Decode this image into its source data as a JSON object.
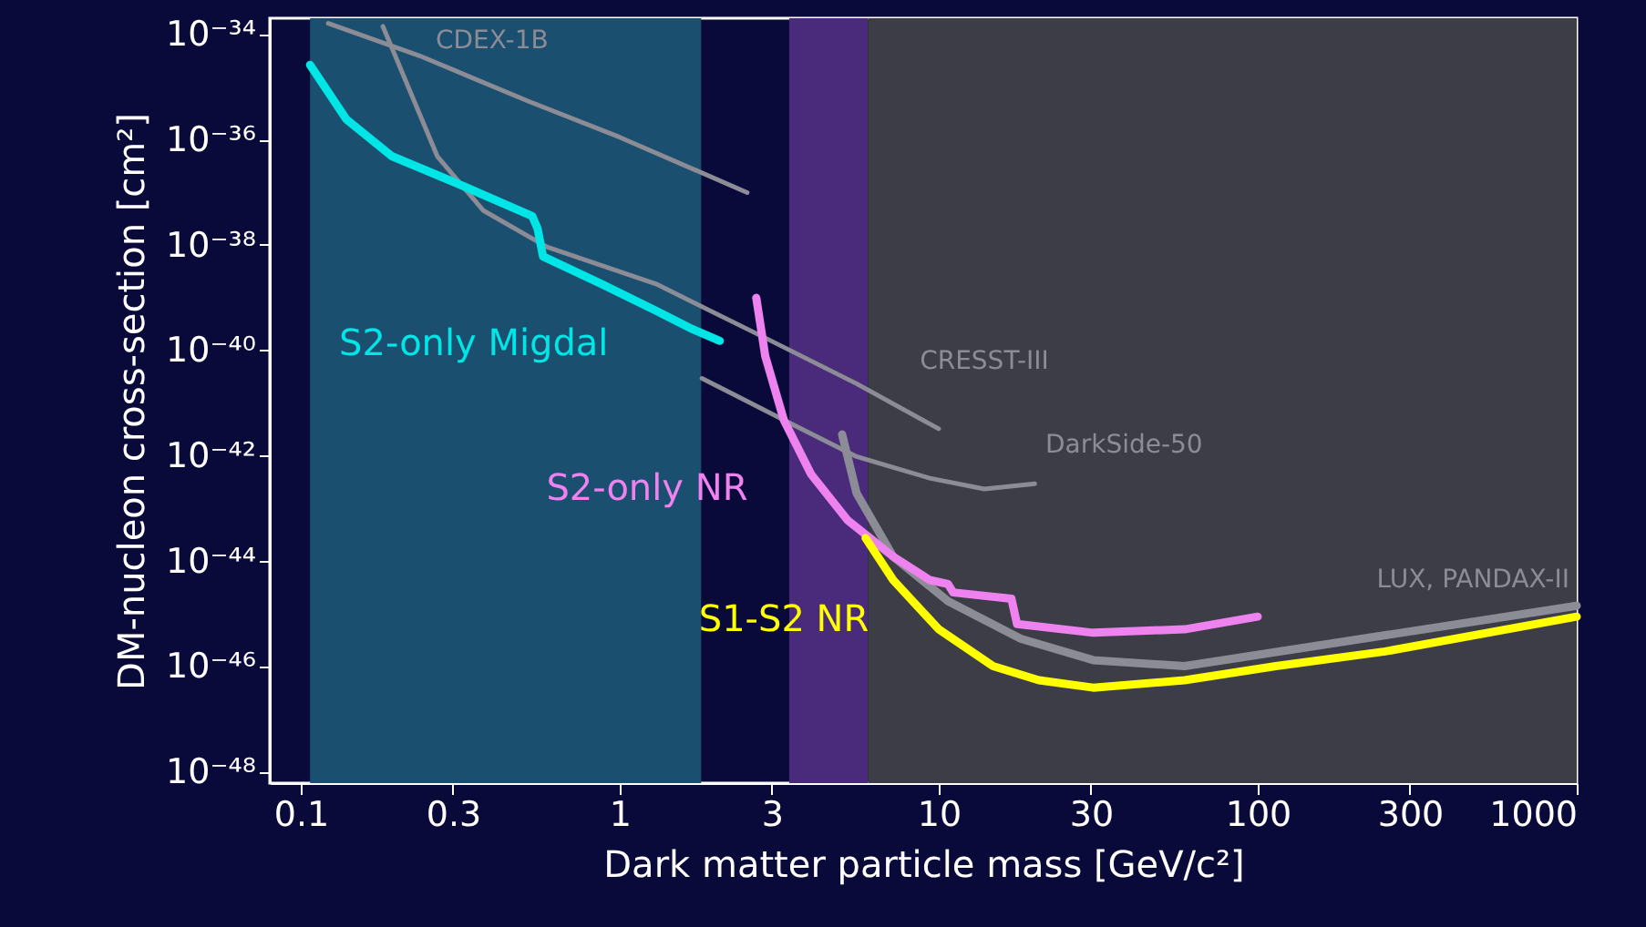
{
  "chart_data": {
    "type": "line",
    "xlabel": "Dark matter particle mass [GeV/c²]",
    "ylabel": "DM-nucleon cross-section [cm²]",
    "log": "xy",
    "grid": false,
    "xlim": [
      0.08,
      1000
    ],
    "xticks": [
      0.1,
      0.3,
      1,
      3,
      10,
      30,
      100,
      300,
      1000
    ],
    "ylim": [
      6e-49,
      2e-34
    ],
    "yticks": [
      {
        "value": 1e-34,
        "label": "10⁻³⁴"
      },
      {
        "value": 1e-36,
        "label": "10⁻³⁶"
      },
      {
        "value": 1e-38,
        "label": "10⁻³⁸"
      },
      {
        "value": 1e-40,
        "label": "10⁻⁴⁰"
      },
      {
        "value": 1e-42,
        "label": "10⁻⁴²"
      },
      {
        "value": 1e-44,
        "label": "10⁻⁴⁴"
      },
      {
        "value": 1e-46,
        "label": "10⁻⁴⁶"
      },
      {
        "value": 1e-48,
        "label": "10⁻⁴⁸"
      }
    ],
    "bands": [
      {
        "axis": "x",
        "from": 0.107,
        "to": 1.8,
        "color": "#1b4f70"
      },
      {
        "axis": "x",
        "from": 3.4,
        "to": 6.0,
        "color": "#4a2a7a"
      },
      {
        "axis": "x",
        "from": 6.0,
        "to": 1000,
        "color": "#3d3d48"
      }
    ],
    "series": [
      {
        "name": "CDEX-1B",
        "color": "#8c8c96",
        "x": [
          0.122,
          0.235,
          0.518,
          1.0,
          2.51
        ],
        "values": [
          1.6e-34,
          3.9e-35,
          5.3e-36,
          1.1e-36,
          9.8e-38
        ]
      },
      {
        "name": "CRESST-III",
        "color": "#8c8c96",
        "x": [
          0.181,
          0.268,
          0.373,
          0.591,
          1.3,
          2.86,
          5.53,
          10.0
        ],
        "values": [
          1.4e-34,
          4.8e-37,
          4.5e-38,
          9.1e-39,
          1.8e-39,
          1.7e-40,
          2.3e-41,
          3.2e-42
        ]
      },
      {
        "name": "DarkSide-50",
        "color": "#8c8c96",
        "x": [
          1.81,
          2.2,
          3.27,
          5.53,
          9.37,
          13.9,
          20.0
        ],
        "values": [
          2.9e-41,
          1.6e-41,
          4.7e-42,
          9.5e-43,
          3.7e-43,
          2.3e-43,
          2.9e-43
        ]
      },
      {
        "name": "LUX, PANDAX-II",
        "color": "#8c8c96",
        "x": [
          4.98,
          5.53,
          7.2,
          10.7,
          18.1,
          30.5,
          59.0,
          1000
        ],
        "values": [
          2.5e-42,
          1.9e-43,
          1.2e-44,
          1.7e-45,
          3.3e-46,
          1.3e-46,
          1e-46,
          1.4e-45
        ]
      },
      {
        "name": "S2-only Migdal",
        "color": "#00e5e5",
        "x": [
          0.107,
          0.139,
          0.193,
          0.306,
          0.532,
          0.553,
          0.575,
          0.877,
          1.3,
          1.69,
          2.06
        ],
        "values": [
          2.6e-35,
          2.4e-36,
          4.8e-37,
          1.5e-37,
          3.5e-38,
          2e-38,
          6e-39,
          1.8e-39,
          5.6e-40,
          2.5e-40,
          1.5e-40
        ]
      },
      {
        "name": "S2-only NR",
        "color": "#ee82ee",
        "x": [
          2.68,
          2.86,
          3.27,
          3.98,
          5.18,
          7.2,
          9.37,
          10.7,
          11.1,
          16.9,
          17.6,
          30.5,
          59.0,
          100
        ],
        "values": [
          9.8e-40,
          7.6e-41,
          4.7e-42,
          4.4e-43,
          5.9e-44,
          1.2e-44,
          4.3e-45,
          3.6e-45,
          2.5e-45,
          1.9e-45,
          6.3e-46,
          4.3e-46,
          5e-46,
          8.7e-46
        ]
      },
      {
        "name": "S1-S2 NR",
        "color": "#ffff00",
        "x": [
          5.9,
          7.2,
          10.0,
          14.8,
          20.6,
          30.5,
          59.0,
          114,
          251,
          1000
        ],
        "values": [
          2.7e-44,
          4.3e-45,
          5e-46,
          1e-46,
          5.4e-47,
          3.9e-47,
          5.4e-47,
          1e-46,
          1.9e-46,
          8.7e-46
        ]
      }
    ]
  }
}
